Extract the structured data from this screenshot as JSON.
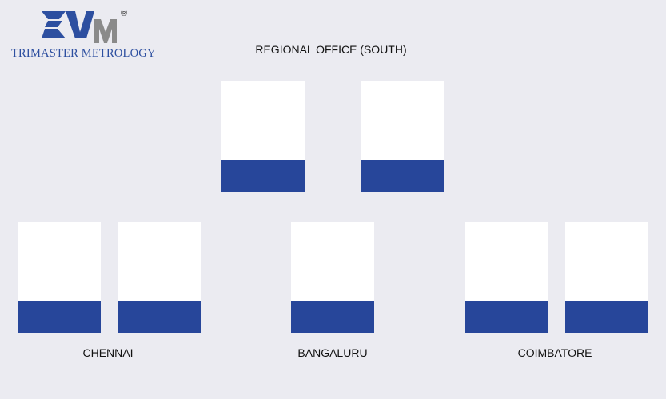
{
  "logo": {
    "company_name": "TRIMASTER METROLOGY",
    "registered_mark": "®",
    "colors": {
      "primary": "#2d4fa0",
      "secondary": "#8a8a8a"
    }
  },
  "regional_office": {
    "title": "REGIONAL OFFICE (SOUTH)"
  },
  "locations": [
    {
      "label": "CHENNAI"
    },
    {
      "label": "BANGALURU"
    },
    {
      "label": "COIMBATORE"
    }
  ],
  "colors": {
    "background": "#ebebf1",
    "card": "#ffffff",
    "card_band": "#27469a"
  }
}
